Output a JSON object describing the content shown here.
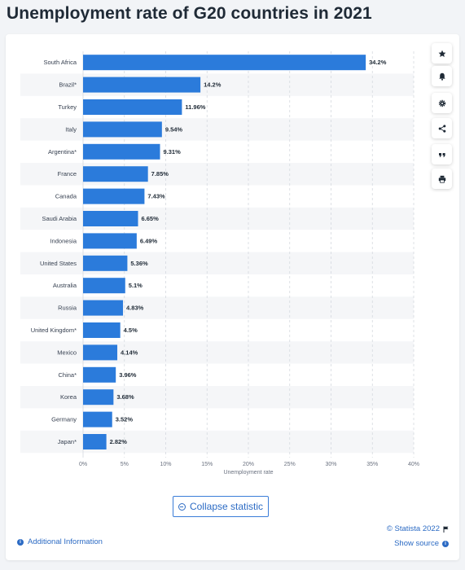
{
  "page": {
    "title": "Unemployment rate of G20 countries in 2021"
  },
  "toolbar": {
    "icons": [
      "star-icon",
      "bell-icon",
      "gear-icon",
      "share-icon",
      "quote-icon",
      "print-icon"
    ]
  },
  "footer": {
    "collapse_label": "Collapse statistic",
    "additional_info": "Additional Information",
    "credit": "© Statista 2022",
    "show_source": "Show source"
  },
  "colors": {
    "bar": "#2b7bdb",
    "stripe": "#f5f6f8",
    "link": "#2c6bc4",
    "title": "#1f2a36"
  },
  "chart_data": {
    "type": "bar",
    "orientation": "horizontal",
    "categories": [
      "South Africa",
      "Brazil*",
      "Turkey",
      "Italy",
      "Argentina*",
      "France",
      "Canada",
      "Saudi Arabia",
      "Indonesia",
      "United States",
      "Australia",
      "Russia",
      "United Kingdom*",
      "Mexico",
      "China*",
      "Korea",
      "Germany",
      "Japan*"
    ],
    "values": [
      34.2,
      14.2,
      11.96,
      9.54,
      9.31,
      7.85,
      7.43,
      6.65,
      6.49,
      5.36,
      5.1,
      4.83,
      4.5,
      4.14,
      3.96,
      3.68,
      3.52,
      2.82
    ],
    "value_labels": [
      "34.2%",
      "14.2%",
      "11.96%",
      "9.54%",
      "9.31%",
      "7.85%",
      "7.43%",
      "6.65%",
      "6.49%",
      "5.36%",
      "5.1%",
      "4.83%",
      "4.5%",
      "4.14%",
      "3.96%",
      "3.68%",
      "3.52%",
      "2.82%"
    ],
    "xlabel": "Unemployment rate",
    "ylabel": "",
    "xlim": [
      0,
      40
    ],
    "ticks": [
      0,
      5,
      10,
      15,
      20,
      25,
      30,
      35,
      40
    ],
    "tick_labels": [
      "0%",
      "5%",
      "10%",
      "15%",
      "20%",
      "25%",
      "30%",
      "35%",
      "40%"
    ],
    "grid": true,
    "legend": "none"
  }
}
